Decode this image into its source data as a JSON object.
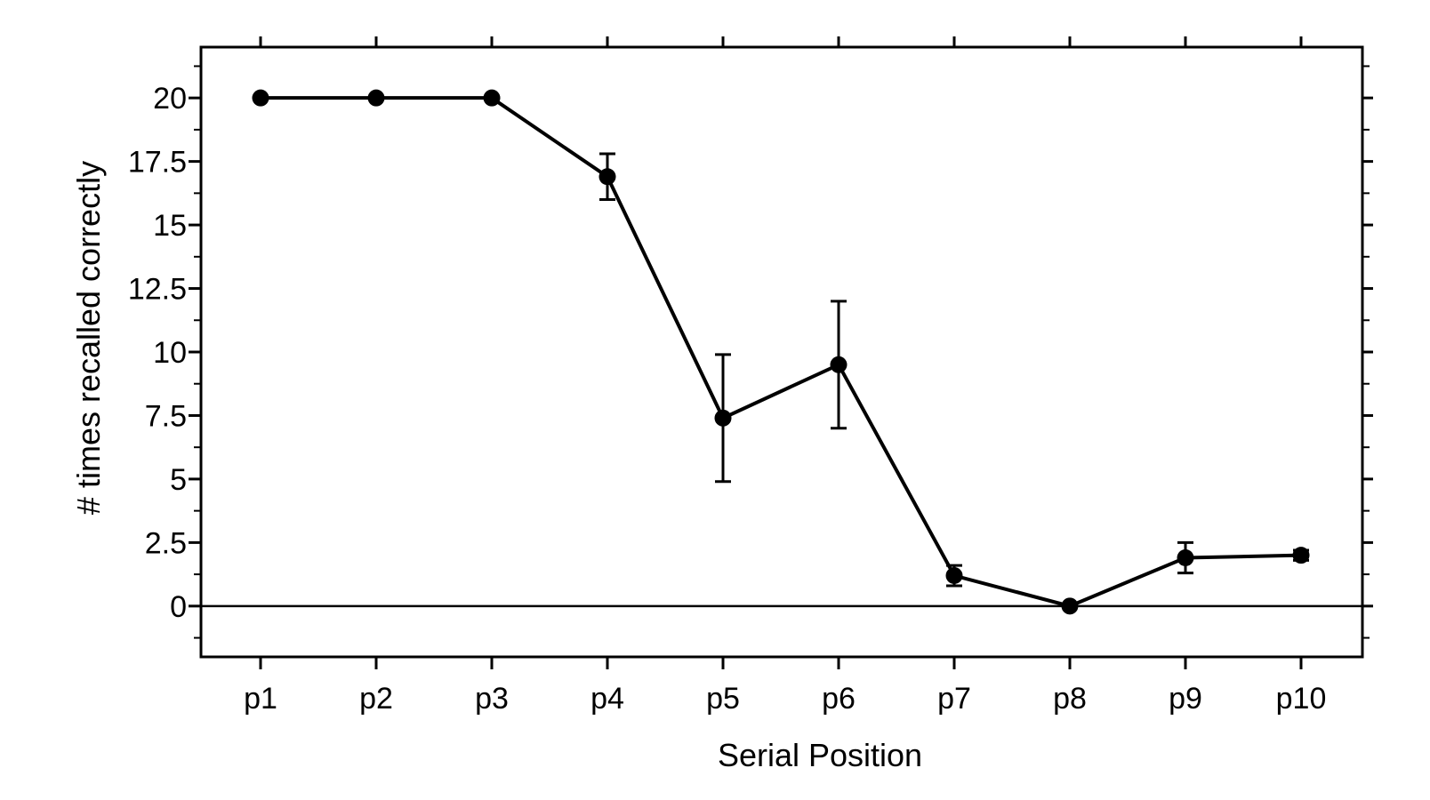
{
  "chart_data": {
    "type": "line",
    "title": "",
    "xlabel": "Serial Position",
    "ylabel": "# times recalled correctly",
    "categories": [
      "p1",
      "p2",
      "p3",
      "p4",
      "p5",
      "p6",
      "p7",
      "p8",
      "p9",
      "p10"
    ],
    "y_ticks": [
      "0",
      "2.5",
      "5",
      "7.5",
      "10",
      "12.5",
      "15",
      "17.5",
      "20"
    ],
    "ylim": [
      -2,
      22
    ],
    "series": [
      {
        "values": [
          20,
          20,
          20,
          16.9,
          7.4,
          9.5,
          1.2,
          0,
          1.9,
          2.0
        ],
        "error": [
          0,
          0,
          0,
          0.9,
          2.5,
          2.5,
          0.4,
          0,
          0.6,
          0.2
        ]
      }
    ],
    "reference_line_y": 0,
    "grid": false,
    "legend": "none",
    "colors": {
      "line": "#000000",
      "marker": "#000000",
      "background": "#ffffff"
    }
  }
}
